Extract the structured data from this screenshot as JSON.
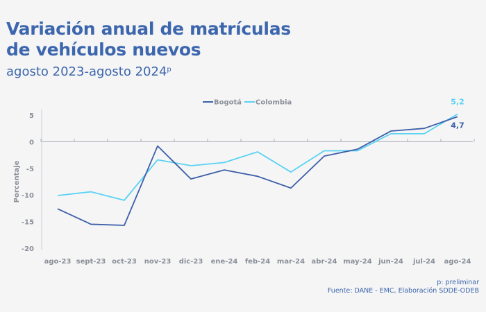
{
  "header": {
    "title_line1": "Variación anual de matrículas",
    "title_line2": "de vehículos nuevos",
    "subtitle": "agosto 2023-agosto 2024",
    "subtitle_sup": "p"
  },
  "footer": {
    "note": "p: preliminar",
    "source": "Fuente: DANE - EMC, Elaboración SDDE-ODEB"
  },
  "chart_data": {
    "type": "line",
    "title": "Variación anual de matrículas de vehículos nuevos",
    "xlabel": "",
    "ylabel": "Porcentaje",
    "ylim": [
      -20,
      5
    ],
    "yticks": [
      "5",
      "0",
      "-5",
      "-10",
      "-15",
      "-20"
    ],
    "ytick_values": [
      5,
      0,
      -5,
      -10,
      -15,
      -20
    ],
    "categories": [
      "ago-23",
      "sept-23",
      "oct-23",
      "nov-23",
      "dic-23",
      "ene-24",
      "feb-24",
      "mar-24",
      "abr-24",
      "may-24",
      "jun-24",
      "jul-24",
      "ago-24"
    ],
    "legend_position": "top-center",
    "series": [
      {
        "name": "Bogotá",
        "color": "#3c5ea8",
        "values": [
          -12.6,
          -15.5,
          -15.7,
          -0.8,
          -7.0,
          -5.3,
          -6.5,
          -8.7,
          -2.7,
          -1.4,
          2.0,
          2.5,
          4.7
        ]
      },
      {
        "name": "Colombia",
        "color": "#5ad2f4",
        "values": [
          -10.1,
          -9.4,
          -11.0,
          -3.4,
          -4.5,
          -3.9,
          -1.9,
          -5.7,
          -1.7,
          -1.7,
          1.5,
          1.5,
          5.2
        ]
      }
    ],
    "annotations": [
      {
        "series": "Colombia",
        "label": "5,2"
      },
      {
        "series": "Bogotá",
        "label": "4,7"
      }
    ]
  }
}
